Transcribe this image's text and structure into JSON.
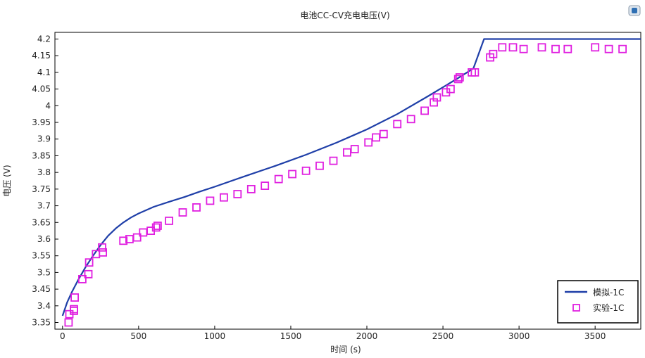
{
  "chart_data": {
    "type": "line",
    "title": "电池CC-CV充电电压(V)",
    "xlabel": "时间 (s)",
    "ylabel": "电压 (V)",
    "xlim": [
      -50,
      3800
    ],
    "ylim": [
      3.33,
      4.22
    ],
    "xticks": [
      0,
      500,
      1000,
      1500,
      2000,
      2500,
      3000,
      3500
    ],
    "yticks": [
      3.35,
      3.4,
      3.45,
      3.5,
      3.55,
      3.6,
      3.65,
      3.7,
      3.75,
      3.8,
      3.85,
      3.9,
      3.95,
      4,
      4.05,
      4.1,
      4.15,
      4.2
    ],
    "grid": false,
    "legend_position": "bottom-right",
    "series": [
      {
        "name": "模拟-1C",
        "style": "line",
        "color": "#1f3fa8",
        "x": [
          0,
          30,
          60,
          100,
          150,
          200,
          250,
          300,
          350,
          400,
          450,
          500,
          600,
          700,
          800,
          900,
          1000,
          1200,
          1400,
          1600,
          1800,
          2000,
          2200,
          2400,
          2600,
          2700,
          2770,
          2800,
          3000,
          3200,
          3400,
          3600,
          3800
        ],
        "y": [
          3.37,
          3.41,
          3.44,
          3.475,
          3.515,
          3.55,
          3.582,
          3.61,
          3.632,
          3.65,
          3.665,
          3.677,
          3.697,
          3.712,
          3.726,
          3.742,
          3.757,
          3.789,
          3.82,
          3.853,
          3.889,
          3.929,
          3.975,
          4.028,
          4.083,
          4.112,
          4.2,
          4.2,
          4.2,
          4.2,
          4.2,
          4.2,
          4.2
        ]
      },
      {
        "name": "实验-1C",
        "style": "markers",
        "color": "#e020e0",
        "x": [
          40,
          45,
          75,
          75,
          80,
          130,
          170,
          175,
          220,
          260,
          265,
          400,
          440,
          490,
          530,
          580,
          615,
          625,
          700,
          790,
          880,
          970,
          1060,
          1150,
          1240,
          1330,
          1420,
          1510,
          1600,
          1690,
          1780,
          1870,
          1920,
          2010,
          2060,
          2110,
          2200,
          2290,
          2380,
          2440,
          2460,
          2520,
          2550,
          2600,
          2610,
          2690,
          2710,
          2810,
          2830,
          2890,
          2960,
          3030,
          3150,
          3240,
          3320,
          3500,
          3590,
          3680
        ],
        "y": [
          3.35,
          3.375,
          3.39,
          3.385,
          3.425,
          3.48,
          3.495,
          3.53,
          3.555,
          3.575,
          3.56,
          3.595,
          3.6,
          3.605,
          3.62,
          3.625,
          3.635,
          3.64,
          3.655,
          3.68,
          3.695,
          3.715,
          3.725,
          3.735,
          3.75,
          3.76,
          3.78,
          3.795,
          3.805,
          3.82,
          3.835,
          3.86,
          3.87,
          3.89,
          3.905,
          3.915,
          3.945,
          3.96,
          3.985,
          4.01,
          4.025,
          4.04,
          4.05,
          4.08,
          4.085,
          4.1,
          4.1,
          4.145,
          4.155,
          4.175,
          4.175,
          4.17,
          4.175,
          4.17,
          4.17,
          4.175,
          4.17,
          4.17
        ]
      }
    ]
  },
  "ui": {
    "icon": "comsol-logo-icon"
  }
}
